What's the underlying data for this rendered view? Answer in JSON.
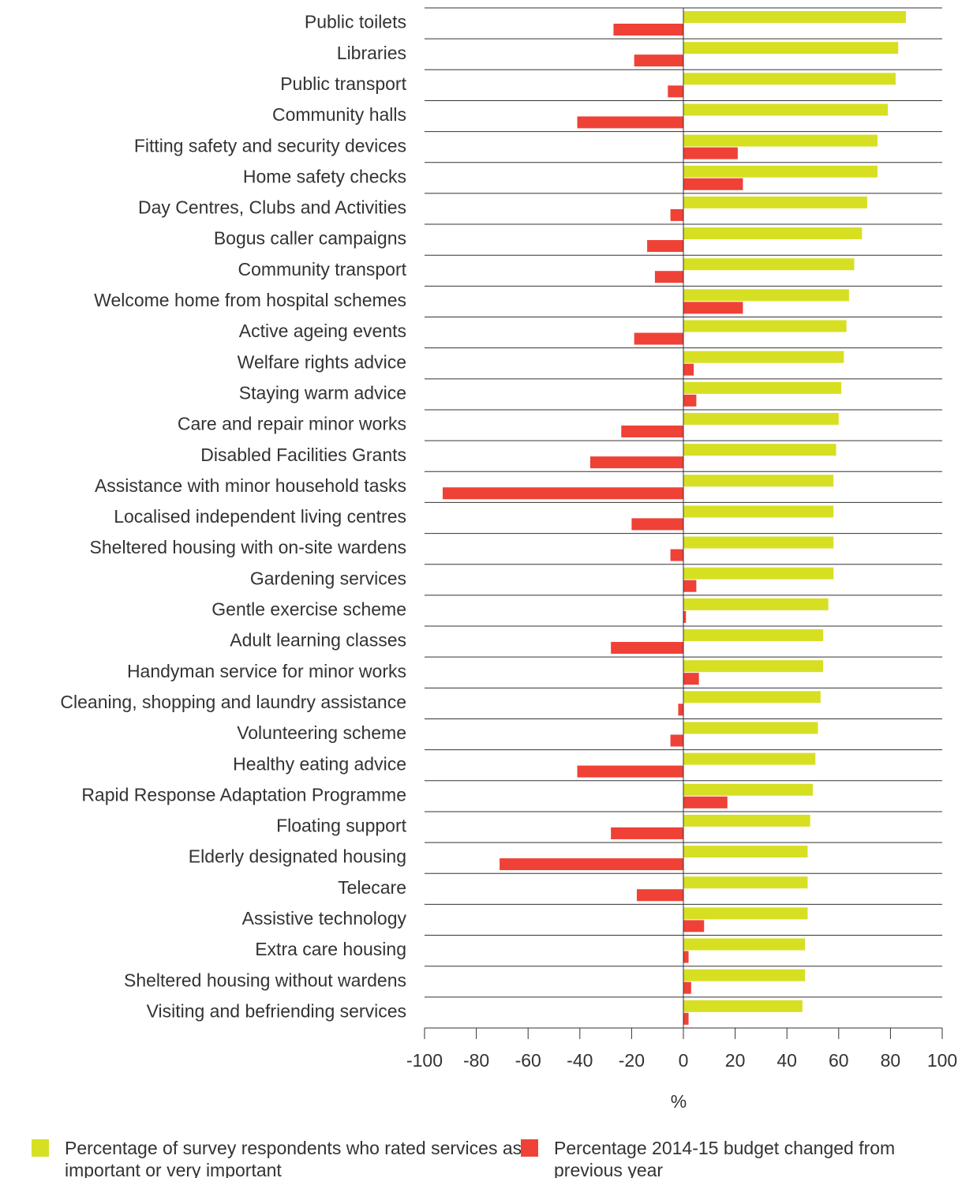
{
  "chart_data": {
    "type": "bar",
    "orientation": "horizontal",
    "categories": [
      "Public toilets",
      "Libraries",
      "Public transport",
      "Community halls",
      "Fitting safety and security devices",
      "Home safety checks",
      "Day Centres, Clubs and Activities",
      "Bogus caller campaigns",
      "Community transport",
      "Welcome home from hospital schemes",
      "Active ageing events",
      "Welfare rights advice",
      "Staying warm advice",
      "Care and repair minor works",
      "Disabled Facilities Grants",
      "Assistance with minor household tasks",
      "Localised independent living centres",
      "Sheltered housing with on-site wardens",
      "Gardening  services",
      "Gentle exercise scheme",
      "Adult learning classes",
      "Handyman service for minor works",
      "Cleaning, shopping and laundry assistance",
      "Volunteering scheme",
      "Healthy eating advice",
      "Rapid Response Adaptation Programme",
      "Floating support",
      "Elderly designated housing",
      "Telecare",
      "Assistive technology",
      "Extra care housing",
      "Sheltered housing without wardens",
      "Visiting and befriending services"
    ],
    "series": [
      {
        "name": "Percentage of survey respondents who rated services as important or very important",
        "color": "#d7df23",
        "values": [
          86,
          83,
          82,
          79,
          75,
          75,
          71,
          69,
          66,
          64,
          63,
          62,
          61,
          60,
          59,
          58,
          58,
          58,
          58,
          56,
          54,
          54,
          53,
          52,
          51,
          50,
          49,
          48,
          48,
          48,
          47,
          47,
          46
        ]
      },
      {
        "name": "Percentage 2014-15 budget changed from previous year",
        "color": "#ef4136",
        "values": [
          -27,
          -19,
          -6,
          -41,
          21,
          23,
          -5,
          -14,
          -11,
          23,
          -19,
          4,
          5,
          -24,
          -36,
          -93,
          -20,
          -5,
          5,
          1,
          -28,
          6,
          -2,
          -5,
          -41,
          17,
          -28,
          -71,
          -18,
          8,
          2,
          3,
          2
        ]
      }
    ],
    "xlabel": "%",
    "xlim": [
      -100,
      100
    ],
    "xticks": [
      -100,
      -80,
      -60,
      -40,
      -20,
      0,
      20,
      40,
      60,
      80,
      100
    ],
    "grid": true
  }
}
